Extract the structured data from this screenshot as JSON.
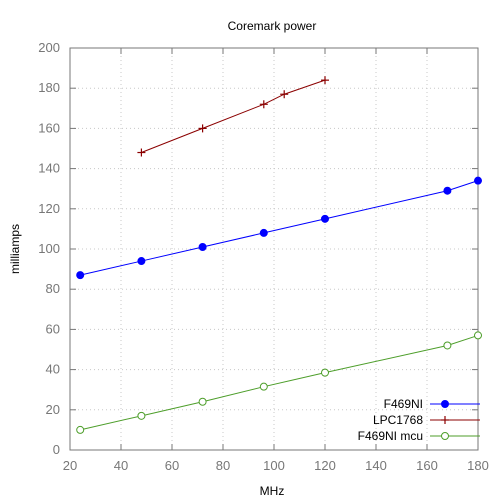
{
  "chart_data": {
    "type": "line",
    "title": "Coremark power",
    "xlabel": "MHz",
    "ylabel": "milliamps",
    "xlim": [
      20,
      180
    ],
    "ylim": [
      0,
      200
    ],
    "xticks": [
      20,
      40,
      60,
      80,
      100,
      120,
      140,
      160,
      180
    ],
    "yticks": [
      0,
      20,
      40,
      60,
      80,
      100,
      120,
      140,
      160,
      180,
      200
    ],
    "grid": true,
    "legend_position": "bottom-right",
    "series": [
      {
        "name": "F469NI",
        "color": "#0000ff",
        "marker": "filled-circle",
        "x": [
          24,
          48,
          72,
          96,
          120,
          168,
          180
        ],
        "y": [
          87,
          94,
          101,
          108,
          115,
          129,
          134
        ]
      },
      {
        "name": "LPC1768",
        "color": "#8b0000",
        "marker": "plus",
        "x": [
          48,
          72,
          96,
          104,
          120
        ],
        "y": [
          148,
          160,
          172,
          177,
          184
        ]
      },
      {
        "name": "F469NI mcu",
        "color": "#4d9e2a",
        "marker": "open-circle",
        "x": [
          24,
          48,
          72,
          96,
          120,
          168,
          180
        ],
        "y": [
          10,
          17,
          24,
          31.5,
          38.5,
          52,
          57
        ]
      }
    ]
  }
}
